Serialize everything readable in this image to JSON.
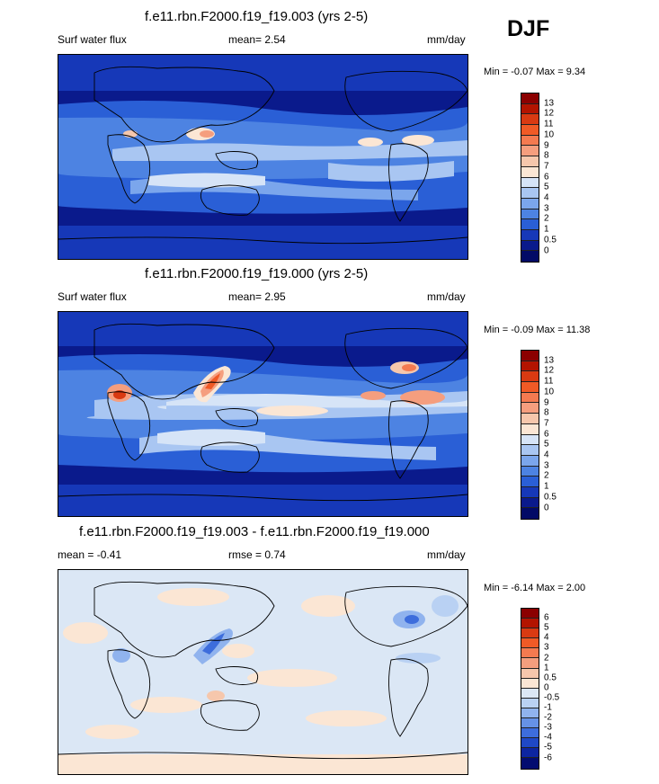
{
  "season": "DJF",
  "panels": [
    {
      "title": "f.e11.rbn.F2000.f19_f19.003 (yrs 2-5)",
      "left_label": "Surf water flux",
      "mid_label": "mean=   2.54",
      "units": "mm/day",
      "minmax": "Min =  -0.07 Max =   9.34",
      "colorbar": {
        "levels": [
          "13",
          "12",
          "11",
          "10",
          "9",
          "8",
          "7",
          "6",
          "5",
          "4",
          "3",
          "2",
          "1",
          "0.5",
          "0"
        ],
        "colors": [
          "#8b0000",
          "#b31400",
          "#d93a12",
          "#f05a26",
          "#f47a50",
          "#f59e7e",
          "#f6c7ac",
          "#fbe6d4",
          "#d6e4f7",
          "#a9c6f2",
          "#7ba6ec",
          "#4d83e2",
          "#2a5fd6",
          "#1638b8",
          "#0a1a8c",
          "#020a66"
        ]
      }
    },
    {
      "title": "f.e11.rbn.F2000.f19_f19.000 (yrs 2-5)",
      "left_label": "Surf water flux",
      "mid_label": "mean=   2.95",
      "units": "mm/day",
      "minmax": "Min =  -0.09 Max =  11.38",
      "colorbar": {
        "levels": [
          "13",
          "12",
          "11",
          "10",
          "9",
          "8",
          "7",
          "6",
          "5",
          "4",
          "3",
          "2",
          "1",
          "0.5",
          "0"
        ],
        "colors": [
          "#8b0000",
          "#b31400",
          "#d93a12",
          "#f05a26",
          "#f47a50",
          "#f59e7e",
          "#f6c7ac",
          "#fbe6d4",
          "#d6e4f7",
          "#a9c6f2",
          "#7ba6ec",
          "#4d83e2",
          "#2a5fd6",
          "#1638b8",
          "#0a1a8c",
          "#020a66"
        ]
      }
    },
    {
      "title": "f.e11.rbn.F2000.f19_f19.003 - f.e11.rbn.F2000.f19_f19.000",
      "left_label": "mean = -0.41",
      "mid_label": "rmse =   0.74",
      "units": "mm/day",
      "minmax": "Min =  -6.14 Max =   2.00",
      "colorbar": {
        "levels": [
          "6",
          "5",
          "4",
          "3",
          "2",
          "1",
          "0.5",
          "0",
          "-0.5",
          "-1",
          "-2",
          "-3",
          "-4",
          "-5",
          "-6"
        ],
        "colors": [
          "#8b0000",
          "#b31400",
          "#d93a12",
          "#f05a26",
          "#f47a50",
          "#f59e7e",
          "#f6c7ac",
          "#fbe6d4",
          "#dbe7f5",
          "#b9d1f3",
          "#90b3ee",
          "#6692e6",
          "#3d6ddc",
          "#1f48c6",
          "#0d25a0",
          "#030c70"
        ]
      }
    }
  ]
}
